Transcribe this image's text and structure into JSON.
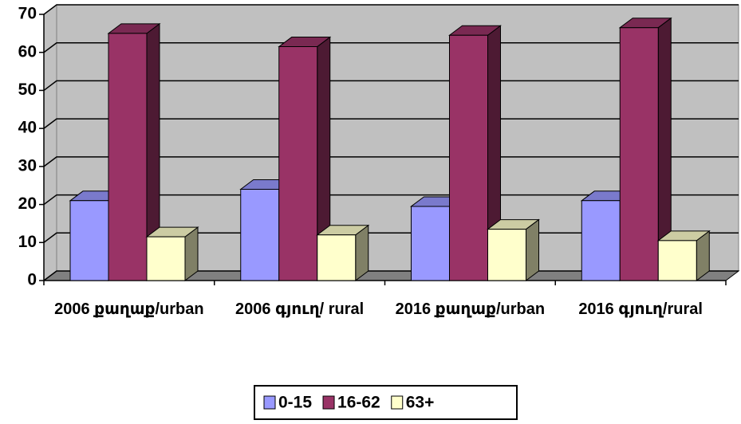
{
  "chart_data": {
    "type": "bar3d",
    "categories": [
      "2006 քաղաք/urban",
      "2006 գյուղ/ rural",
      "2016 քաղաք/urban",
      "2016 գյուղ/rural"
    ],
    "series": [
      {
        "name": "0-15",
        "color": "#9999ff",
        "values": [
          21,
          24,
          19.5,
          21
        ]
      },
      {
        "name": "16-62",
        "color": "#993366",
        "values": [
          65,
          61.5,
          64.5,
          66.5
        ]
      },
      {
        "name": "63+",
        "color": "#ffffcc",
        "values": [
          11.5,
          12,
          13.5,
          10.5
        ]
      }
    ],
    "ylim": [
      0,
      70
    ],
    "yticks": [
      0,
      10,
      20,
      30,
      40,
      50,
      60,
      70
    ],
    "grid": true,
    "legend": "bottom"
  }
}
